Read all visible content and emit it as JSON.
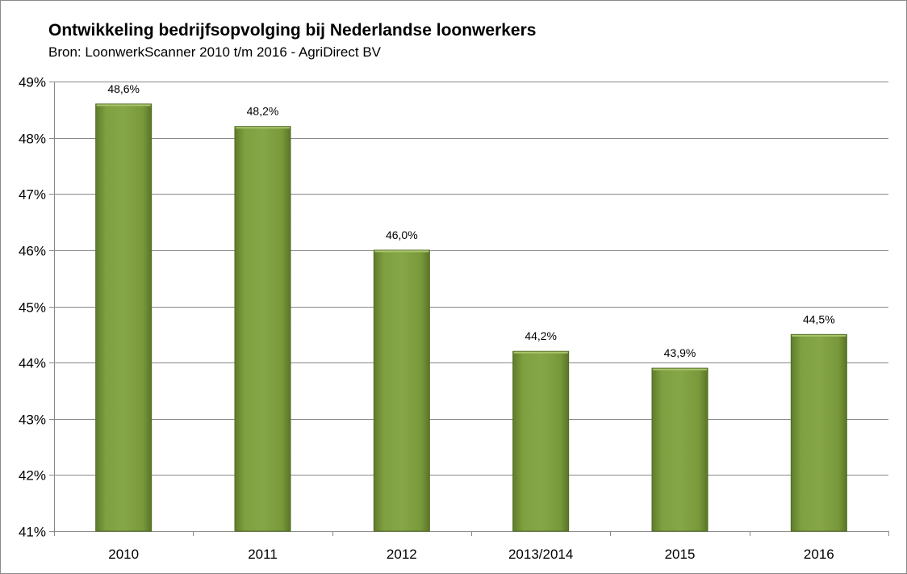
{
  "chart_data": {
    "type": "bar",
    "title": "Ontwikkeling bedrijfsopvolging bij Nederlandse loonwerkers",
    "subtitle": "Bron: LoonwerkScanner 2010 t/m 2016 - AgriDirect BV",
    "categories": [
      "2010",
      "2011",
      "2012",
      "2013/2014",
      "2015",
      "2016"
    ],
    "values": [
      48.6,
      48.2,
      46.0,
      44.2,
      43.9,
      44.5
    ],
    "data_labels": [
      "48,6%",
      "48,2%",
      "46,0%",
      "44,2%",
      "43,9%",
      "44,5%"
    ],
    "y_ticks": [
      41,
      42,
      43,
      44,
      45,
      46,
      47,
      48,
      49
    ],
    "y_tick_labels": [
      "41%",
      "42%",
      "43%",
      "44%",
      "45%",
      "46%",
      "47%",
      "48%",
      "49%"
    ],
    "ylim": [
      41,
      49
    ],
    "xlabel": "",
    "ylabel": "",
    "grid": true,
    "legend": "none",
    "bar_color": "#7f9f3f"
  }
}
